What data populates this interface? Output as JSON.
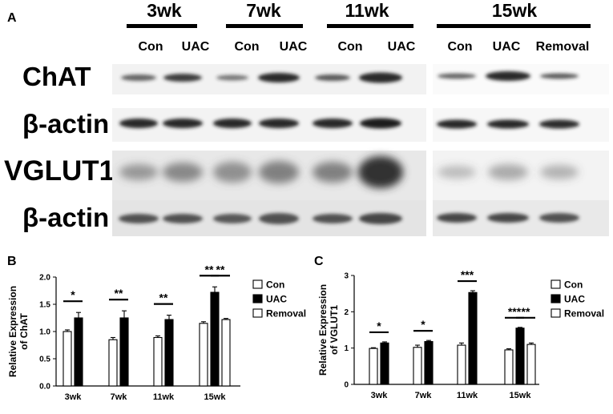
{
  "panels": {
    "a": "A",
    "b": "B",
    "c": "C"
  },
  "blot": {
    "timepoints": [
      "3wk",
      "7wk",
      "11wk",
      "15wk"
    ],
    "lanes": [
      "Con",
      "UAC",
      "Con",
      "UAC",
      "Con",
      "UAC",
      "Con",
      "UAC",
      "Removal"
    ],
    "rows": [
      "ChAT",
      "β-actin",
      "VGLUT1",
      "β-actin"
    ]
  },
  "chart_data": [
    {
      "type": "bar",
      "ylabel": "Relative Expression of ChAT",
      "ylabel_lines": [
        "Relative Expression",
        "of ChAT"
      ],
      "ylim": [
        0,
        2.0
      ],
      "yticks": [
        "0.0",
        "0.5",
        "1.0",
        "1.5",
        "2.0"
      ],
      "categories": [
        "3wk",
        "7wk",
        "11wk",
        "15wk"
      ],
      "series": [
        {
          "name": "Con",
          "values": [
            1.0,
            0.85,
            0.89,
            1.15
          ],
          "errors": [
            0.03,
            0.04,
            0.03,
            0.03
          ]
        },
        {
          "name": "UAC",
          "values": [
            1.25,
            1.25,
            1.22,
            1.72
          ],
          "errors": [
            0.1,
            0.13,
            0.08,
            0.1
          ]
        },
        {
          "name": "Removal",
          "values": [
            null,
            null,
            null,
            1.22
          ],
          "errors": [
            null,
            null,
            null,
            0.02
          ]
        }
      ],
      "significance": [
        {
          "category": "3wk",
          "pair": [
            "Con",
            "UAC"
          ],
          "label": "*"
        },
        {
          "category": "7wk",
          "pair": [
            "Con",
            "UAC"
          ],
          "label": "**"
        },
        {
          "category": "11wk",
          "pair": [
            "Con",
            "UAC"
          ],
          "label": "**"
        },
        {
          "category": "15wk",
          "pair": [
            "Con",
            "UAC"
          ],
          "label": "**"
        },
        {
          "category": "15wk",
          "pair": [
            "UAC",
            "Removal"
          ],
          "label": "**"
        }
      ],
      "legend_position": "right"
    },
    {
      "type": "bar",
      "ylabel": "Relative Expression of VGLUT1",
      "ylabel_lines": [
        "Relative Expression",
        "of VGLUT1"
      ],
      "ylim": [
        0,
        3
      ],
      "yticks": [
        "0",
        "1",
        "2",
        "3"
      ],
      "categories": [
        "3wk",
        "7wk",
        "11wk",
        "15wk"
      ],
      "series": [
        {
          "name": "Con",
          "values": [
            0.99,
            1.02,
            1.08,
            0.95
          ],
          "errors": [
            0.02,
            0.06,
            0.06,
            0.03
          ]
        },
        {
          "name": "UAC",
          "values": [
            1.14,
            1.18,
            2.53,
            1.55
          ],
          "errors": [
            0.03,
            0.03,
            0.05,
            0.02
          ]
        },
        {
          "name": "Removal",
          "values": [
            null,
            null,
            null,
            1.1
          ],
          "errors": [
            null,
            null,
            null,
            0.04
          ]
        }
      ],
      "significance": [
        {
          "category": "3wk",
          "pair": [
            "Con",
            "UAC"
          ],
          "label": "*"
        },
        {
          "category": "7wk",
          "pair": [
            "Con",
            "UAC"
          ],
          "label": "*"
        },
        {
          "category": "11wk",
          "pair": [
            "Con",
            "UAC"
          ],
          "label": "***"
        },
        {
          "category": "15wk",
          "pair": [
            "Con",
            "UAC"
          ],
          "label": "***"
        },
        {
          "category": "15wk",
          "pair": [
            "UAC",
            "Removal"
          ],
          "label": "**"
        }
      ],
      "legend_position": "right"
    }
  ]
}
